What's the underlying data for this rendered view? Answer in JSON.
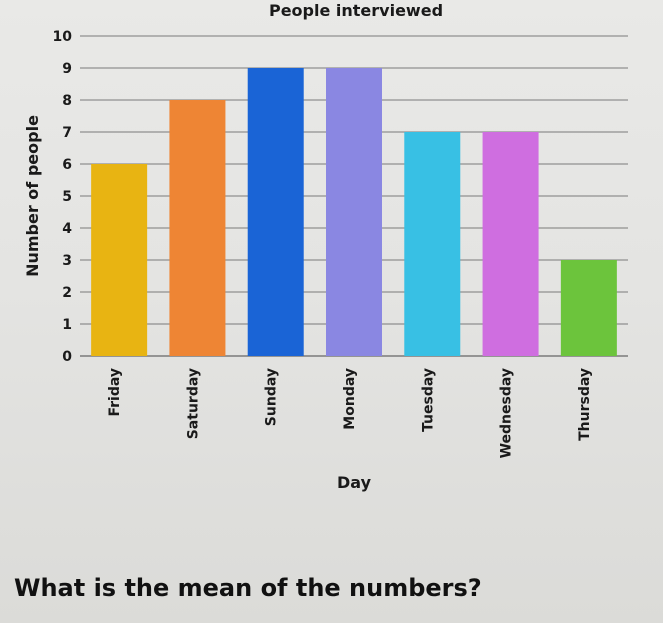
{
  "chart_data": {
    "type": "bar",
    "title": "People interviewed",
    "xlabel": "Day",
    "ylabel": "Number of people",
    "categories": [
      "Friday",
      "Saturday",
      "Sunday",
      "Monday",
      "Tuesday",
      "Wednesday",
      "Thursday"
    ],
    "values": [
      6,
      8,
      9,
      9,
      7,
      7,
      3
    ],
    "colors": [
      "#e8b412",
      "#ee8534",
      "#1a64d6",
      "#8a87e2",
      "#38c0e4",
      "#cf6ee0",
      "#6cc43c"
    ],
    "ylim": [
      0,
      10
    ],
    "yticks": [
      0,
      1,
      2,
      3,
      4,
      5,
      6,
      7,
      8,
      9,
      10
    ],
    "grid": true,
    "gridline_color": "#7a7a7a"
  },
  "question": {
    "text": "What is the mean of the numbers?"
  }
}
